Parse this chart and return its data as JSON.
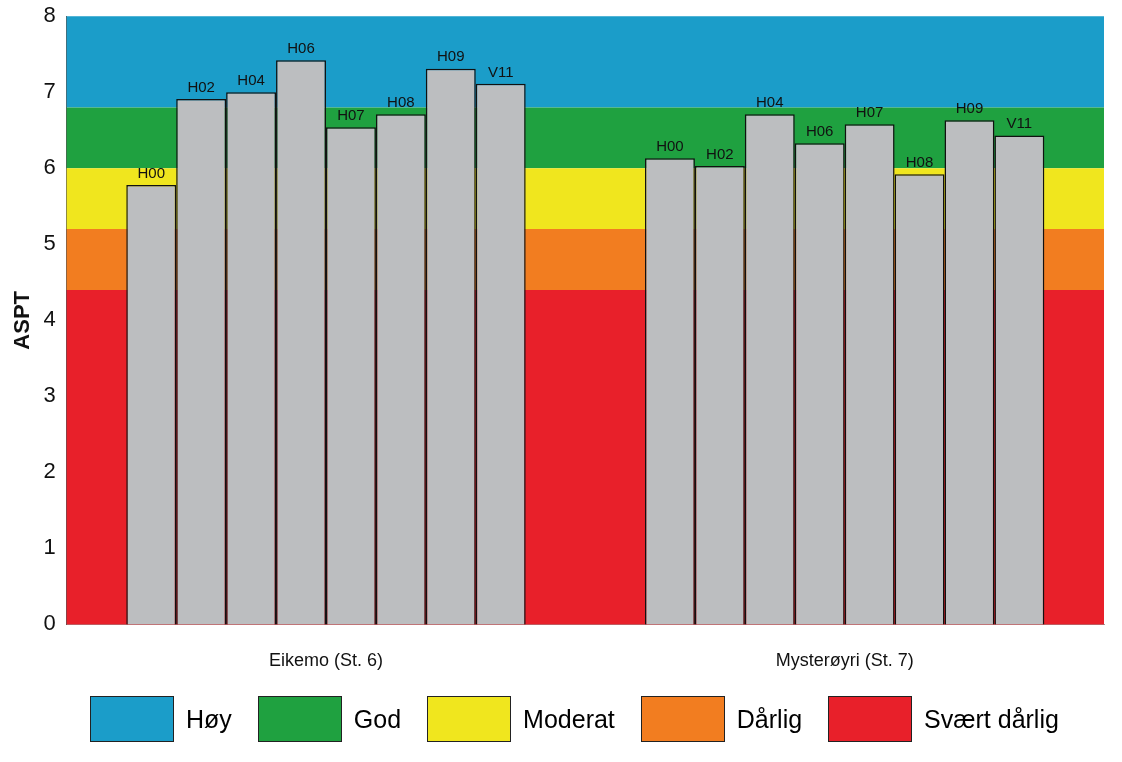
{
  "chart_data": {
    "type": "bar",
    "ylabel": "ASPT",
    "categories": [
      "Eikemo (St. 6)",
      "Mysterøyri (St. 7)"
    ],
    "series": [
      {
        "name": "H00",
        "color": "#bcbec0",
        "values": [
          5.78,
          6.13
        ]
      },
      {
        "name": "H02",
        "color": "#bcbec0",
        "values": [
          6.91,
          6.03
        ]
      },
      {
        "name": "H04",
        "color": "#bcbec0",
        "values": [
          7.0,
          6.71
        ]
      },
      {
        "name": "H06",
        "color": "#bcbec0",
        "values": [
          7.42,
          6.33
        ]
      },
      {
        "name": "H07",
        "color": "#bcbec0",
        "values": [
          6.54,
          6.58
        ]
      },
      {
        "name": "H08",
        "color": "#bcbec0",
        "values": [
          6.71,
          5.92
        ]
      },
      {
        "name": "H09",
        "color": "#bcbec0",
        "values": [
          7.31,
          6.63
        ]
      },
      {
        "name": "V11",
        "color": "#bcbec0",
        "values": [
          7.11,
          6.43
        ]
      }
    ],
    "ylim": [
      0,
      8
    ],
    "yticks": [
      0,
      1,
      2,
      3,
      4,
      5,
      6,
      7,
      8
    ],
    "grid": false,
    "legend": "bottom",
    "bands": [
      {
        "axis": "y",
        "from": 6.8,
        "to": 8,
        "label": "Høy",
        "color": "#1b9dc9"
      },
      {
        "axis": "y",
        "from": 6.0,
        "to": 6.8,
        "label": "God",
        "color": "#1fa140"
      },
      {
        "axis": "y",
        "from": 5.2,
        "to": 6.0,
        "label": "Moderat",
        "color": "#f0e61e"
      },
      {
        "axis": "y",
        "from": 4.4,
        "to": 5.2,
        "label": "Dårlig",
        "color": "#f27d20"
      },
      {
        "axis": "y",
        "from": 0,
        "to": 4.4,
        "label": "Svært dårlig",
        "color": "#e8202a"
      }
    ]
  }
}
